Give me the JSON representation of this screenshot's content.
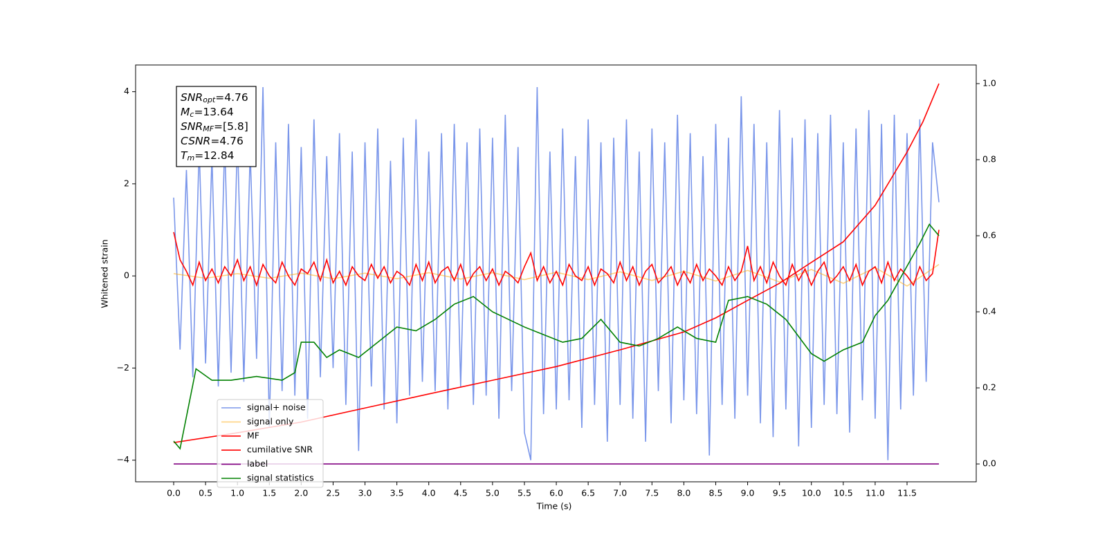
{
  "chart_data": {
    "type": "line",
    "xlabel": "Time (s)",
    "ylabel": "Whitened strain",
    "xlim": [
      -0.597,
      12.585
    ],
    "ylim": [
      -4.47,
      4.58
    ],
    "y2lim": [
      -0.047,
      1.049
    ],
    "xticks": [
      {
        "value": 0,
        "label": "0.0"
      },
      0.5,
      {
        "value": 1,
        "label": "1.0"
      },
      1.5,
      {
        "value": 2,
        "label": "2.0"
      },
      2.5,
      {
        "value": 3,
        "label": "3.0"
      },
      3.5,
      {
        "value": 4,
        "label": "4.0"
      },
      4.5,
      {
        "value": 5,
        "label": "5.0"
      },
      5.5,
      {
        "value": 6,
        "label": "6.0"
      },
      6.5,
      {
        "value": 7,
        "label": "7.0"
      },
      7.5,
      {
        "value": 8,
        "label": "8.0"
      },
      8.5,
      {
        "value": 9,
        "label": "9.0"
      },
      9.5,
      {
        "value": 10,
        "label": "10.0"
      },
      10.5,
      {
        "value": 11,
        "label": "11.0"
      },
      11.5
    ],
    "yticks": [
      {
        "value": -4,
        "label": "−4"
      },
      {
        "value": -2,
        "label": "−2"
      },
      0,
      2,
      4
    ],
    "y2ticks": [
      {
        "value": 0,
        "label": "0.0"
      },
      0.2,
      0.4,
      0.6,
      0.8,
      {
        "value": 1,
        "label": "1.0"
      }
    ],
    "legend": "best",
    "annotations": [
      {
        "name": "SNR",
        "sub": "opt",
        "text": "=4.76"
      },
      {
        "name": "M",
        "sub": "c",
        "text": "=13.64"
      },
      {
        "name": "SNR",
        "sub": "MF",
        "text": "=[5.8]"
      },
      {
        "name": "CSNR",
        "sub": "",
        "text": "=4.76"
      },
      {
        "name": "T",
        "sub": "m",
        "text": "=12.84"
      }
    ],
    "series": [
      {
        "name": "signal+ noise",
        "color": "royalblue",
        "alpha": 0.7,
        "axis": "y",
        "x": [
          0,
          0.1,
          0.2,
          0.3,
          0.4,
          0.5,
          0.6,
          0.7,
          0.8,
          0.9,
          1,
          1.1,
          1.2,
          1.3,
          1.4,
          1.5,
          1.6,
          1.7,
          1.8,
          1.9,
          2,
          2.1,
          2.2,
          2.3,
          2.4,
          2.5,
          2.6,
          2.7,
          2.8,
          2.9,
          3,
          3.1,
          3.2,
          3.3,
          3.4,
          3.5,
          3.6,
          3.7,
          3.8,
          3.9,
          4,
          4.1,
          4.2,
          4.3,
          4.4,
          4.5,
          4.6,
          4.7,
          4.8,
          4.9,
          5,
          5.1,
          5.2,
          5.3,
          5.4,
          5.5,
          5.6,
          5.7,
          5.8,
          5.9,
          6,
          6.1,
          6.2,
          6.3,
          6.4,
          6.5,
          6.6,
          6.7,
          6.8,
          6.9,
          7,
          7.1,
          7.2,
          7.3,
          7.4,
          7.5,
          7.6,
          7.7,
          7.8,
          7.9,
          8,
          8.1,
          8.2,
          8.3,
          8.4,
          8.5,
          8.6,
          8.7,
          8.8,
          8.9,
          9,
          9.1,
          9.2,
          9.3,
          9.4,
          9.5,
          9.6,
          9.7,
          9.8,
          9.9,
          10,
          10.1,
          10.2,
          10.3,
          10.4,
          10.5,
          10.6,
          10.7,
          10.8,
          10.9,
          11,
          11.1,
          11.2,
          11.3,
          11.4,
          11.5,
          11.6,
          11.7,
          11.8,
          11.9,
          12
        ],
        "values": [
          1.7,
          -1.6,
          2.3,
          -2.2,
          2.8,
          -1.9,
          2.6,
          -2.4,
          2.9,
          -2.1,
          3.0,
          -2.3,
          2.7,
          -1.8,
          4.1,
          -3.3,
          2.9,
          -2.5,
          3.3,
          -2.6,
          2.8,
          -3.1,
          3.4,
          -2.2,
          2.6,
          -2.0,
          3.1,
          -2.8,
          2.7,
          -3.8,
          2.9,
          -2.4,
          3.2,
          -2.9,
          2.5,
          -3.2,
          3.0,
          -2.6,
          3.4,
          -2.3,
          2.7,
          -2.5,
          3.1,
          -2.9,
          3.3,
          -2.4,
          2.9,
          -2.8,
          3.2,
          -2.6,
          3.0,
          -3.1,
          3.5,
          -2.5,
          2.8,
          -3.4,
          -4.0,
          4.1,
          -3.0,
          2.7,
          -2.9,
          3.2,
          -2.7,
          2.6,
          -3.3,
          3.4,
          -2.8,
          2.9,
          -3.6,
          3.0,
          -2.8,
          3.4,
          -3.1,
          2.7,
          -3.6,
          3.2,
          -2.5,
          2.9,
          -3.2,
          3.5,
          -2.7,
          3.1,
          -3.0,
          2.6,
          -3.9,
          3.3,
          -2.8,
          3.0,
          -3.1,
          3.9,
          -2.6,
          3.3,
          -3.2,
          2.9,
          -3.5,
          3.6,
          -2.9,
          3.0,
          -3.7,
          3.4,
          -3.3,
          3.1,
          -2.8,
          3.5,
          -3.0,
          2.9,
          -3.4,
          3.2,
          -2.7,
          3.6,
          -3.1,
          3.3,
          -4.0,
          3.5,
          -2.9,
          3.1,
          -2.6,
          3.4,
          -2.3,
          2.9,
          1.6
        ]
      },
      {
        "name": "signal only",
        "color": "orange",
        "alpha": 0.5,
        "axis": "y",
        "x": [
          0,
          0.5,
          1,
          1.5,
          2,
          2.5,
          3,
          3.5,
          4,
          4.5,
          5,
          5.5,
          6,
          6.5,
          7,
          7.5,
          8,
          8.5,
          9,
          9.5,
          10,
          10.5,
          11,
          11.5,
          12
        ],
        "values": [
          0.05,
          -0.05,
          0.05,
          -0.05,
          0.06,
          -0.06,
          0.06,
          -0.06,
          0.07,
          -0.07,
          0.07,
          -0.08,
          0.08,
          -0.08,
          0.09,
          -0.1,
          0.1,
          -0.11,
          0.12,
          -0.13,
          0.14,
          -0.16,
          0.18,
          -0.22,
          0.25
        ]
      },
      {
        "name": "MF",
        "color": "red",
        "alpha": 1,
        "axis": "y",
        "x": [
          0,
          0.1,
          0.2,
          0.3,
          0.4,
          0.5,
          0.6,
          0.7,
          0.8,
          0.9,
          1,
          1.1,
          1.2,
          1.3,
          1.4,
          1.5,
          1.6,
          1.7,
          1.8,
          1.9,
          2,
          2.1,
          2.2,
          2.3,
          2.4,
          2.5,
          2.6,
          2.7,
          2.8,
          2.9,
          3,
          3.1,
          3.2,
          3.3,
          3.4,
          3.5,
          3.6,
          3.7,
          3.8,
          3.9,
          4,
          4.1,
          4.2,
          4.3,
          4.4,
          4.5,
          4.6,
          4.7,
          4.8,
          4.9,
          5,
          5.1,
          5.2,
          5.3,
          5.4,
          5.5,
          5.6,
          5.7,
          5.8,
          5.9,
          6,
          6.1,
          6.2,
          6.3,
          6.4,
          6.5,
          6.6,
          6.7,
          6.8,
          6.9,
          7,
          7.1,
          7.2,
          7.3,
          7.4,
          7.5,
          7.6,
          7.7,
          7.8,
          7.9,
          8,
          8.1,
          8.2,
          8.3,
          8.4,
          8.5,
          8.6,
          8.7,
          8.8,
          8.9,
          9,
          9.1,
          9.2,
          9.3,
          9.4,
          9.5,
          9.6,
          9.7,
          9.8,
          9.9,
          10,
          10.1,
          10.2,
          10.3,
          10.4,
          10.5,
          10.6,
          10.7,
          10.8,
          10.9,
          11,
          11.1,
          11.2,
          11.3,
          11.4,
          11.5,
          11.6,
          11.7,
          11.8,
          11.9,
          12
        ],
        "values": [
          0.95,
          0.35,
          0.1,
          -0.2,
          0.3,
          -0.1,
          0.15,
          -0.15,
          0.2,
          0.0,
          0.35,
          -0.1,
          0.2,
          -0.2,
          0.25,
          0.0,
          -0.15,
          0.3,
          0.0,
          -0.2,
          0.15,
          0.05,
          0.3,
          -0.1,
          0.35,
          -0.15,
          0.1,
          -0.2,
          0.2,
          0.0,
          -0.1,
          0.25,
          -0.05,
          0.2,
          -0.15,
          0.1,
          0.0,
          -0.2,
          0.25,
          -0.1,
          0.3,
          -0.15,
          0.1,
          0.2,
          -0.1,
          0.25,
          -0.2,
          0.05,
          0.2,
          -0.1,
          0.15,
          -0.2,
          0.1,
          0.0,
          -0.15,
          0.2,
          0.5,
          -0.1,
          0.2,
          -0.15,
          0.1,
          -0.2,
          0.25,
          0.0,
          -0.1,
          0.2,
          -0.2,
          0.15,
          0.05,
          -0.15,
          0.3,
          -0.1,
          0.2,
          -0.2,
          0.1,
          0.25,
          -0.15,
          0.0,
          0.2,
          -0.2,
          0.1,
          -0.15,
          0.25,
          -0.1,
          0.15,
          0.0,
          -0.2,
          0.2,
          -0.1,
          0.1,
          0.65,
          -0.1,
          0.2,
          -0.15,
          0.3,
          0.0,
          -0.2,
          0.25,
          -0.1,
          0.15,
          -0.2,
          0.1,
          0.3,
          -0.15,
          0.0,
          0.2,
          -0.1,
          0.25,
          -0.2,
          0.1,
          0.2,
          -0.15,
          0.3,
          -0.1,
          0.15,
          0.0,
          -0.2,
          0.2,
          -0.1,
          0.05,
          1.0
        ]
      },
      {
        "name": "cumilative SNR",
        "color": "red",
        "alpha": 1,
        "axis": "y2",
        "x": [
          0,
          1,
          2,
          3,
          4,
          5,
          6,
          7,
          8,
          8.5,
          9,
          9.5,
          10,
          10.5,
          11,
          11.5,
          11.75,
          12
        ],
        "values": [
          0.056,
          0.082,
          0.11,
          0.147,
          0.184,
          0.22,
          0.256,
          0.3,
          0.347,
          0.384,
          0.43,
          0.475,
          0.53,
          0.584,
          0.68,
          0.82,
          0.9,
          1.0
        ]
      },
      {
        "name": "label",
        "color": "purple",
        "alpha": 1,
        "axis": "y2",
        "x": [
          0,
          12
        ],
        "values": [
          0,
          0
        ]
      },
      {
        "name": "signal statistics",
        "color": "green",
        "alpha": 1,
        "axis": "y2",
        "x": [
          0,
          0.1,
          0.35,
          0.6,
          0.9,
          1.3,
          1.7,
          1.9,
          2.0,
          2.2,
          2.4,
          2.6,
          2.9,
          3.2,
          3.5,
          3.8,
          4.1,
          4.4,
          4.7,
          5.0,
          5.5,
          5.8,
          6.1,
          6.4,
          6.7,
          7.0,
          7.3,
          7.6,
          7.9,
          8.2,
          8.5,
          8.7,
          9.0,
          9.3,
          9.6,
          10.0,
          10.2,
          10.5,
          10.8,
          11.0,
          11.2,
          11.5,
          11.7,
          11.85,
          12.0
        ],
        "values": [
          0.06,
          0.04,
          0.25,
          0.22,
          0.22,
          0.23,
          0.22,
          0.24,
          0.32,
          0.32,
          0.28,
          0.3,
          0.28,
          0.32,
          0.36,
          0.35,
          0.38,
          0.42,
          0.44,
          0.4,
          0.36,
          0.34,
          0.32,
          0.33,
          0.38,
          0.32,
          0.31,
          0.33,
          0.36,
          0.33,
          0.32,
          0.43,
          0.44,
          0.42,
          0.38,
          0.29,
          0.27,
          0.3,
          0.32,
          0.39,
          0.43,
          0.52,
          0.58,
          0.63,
          0.6
        ]
      }
    ]
  }
}
